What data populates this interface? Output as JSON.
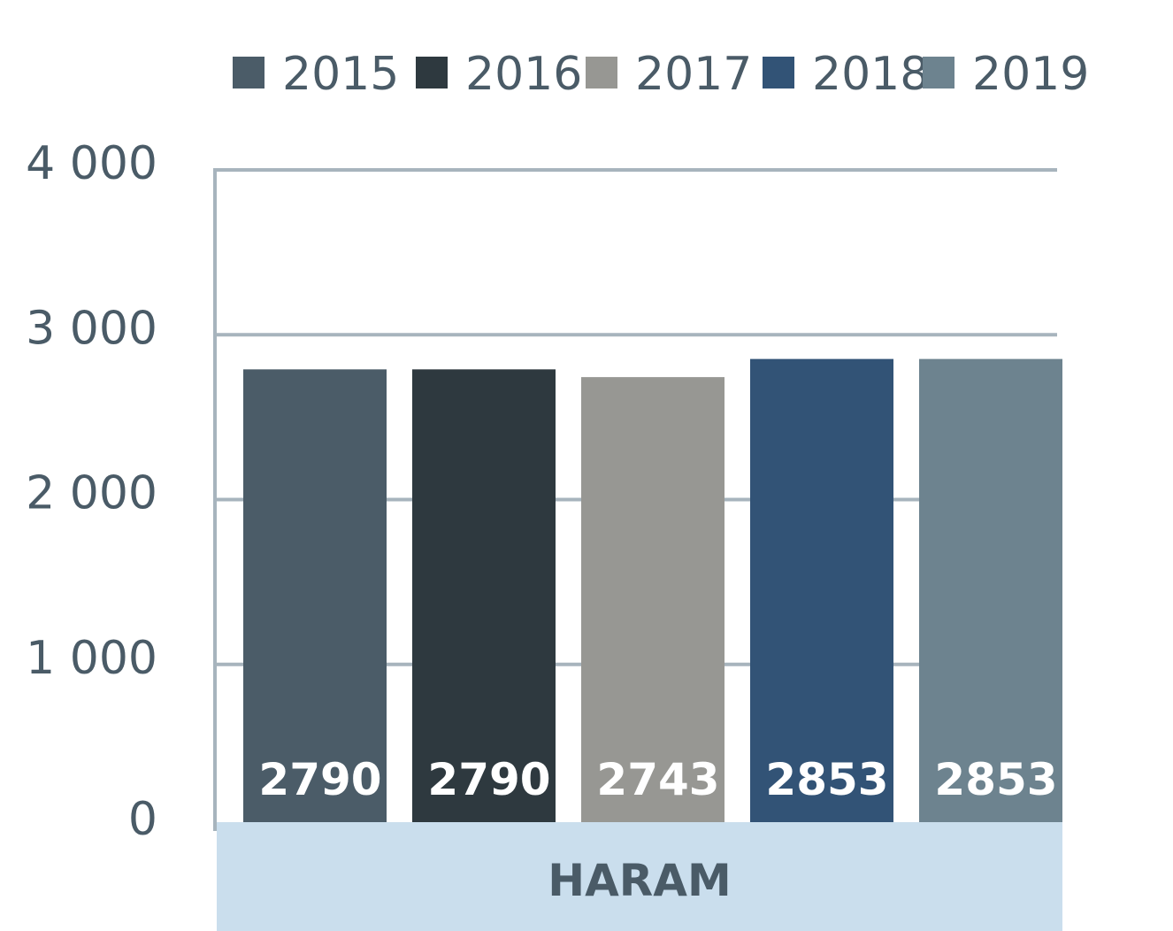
{
  "chart_data": {
    "type": "bar",
    "categories": [
      "HARAM"
    ],
    "series": [
      {
        "name": "2015",
        "values": [
          2790
        ],
        "color": "#4b5c68",
        "value_label": "2790"
      },
      {
        "name": "2016",
        "values": [
          2790
        ],
        "color": "#2e393f",
        "value_label": "2790"
      },
      {
        "name": "2017",
        "values": [
          2743
        ],
        "color": "#979793",
        "value_label": "2743"
      },
      {
        "name": "2018",
        "values": [
          2853
        ],
        "color": "#325376",
        "value_label": "2853"
      },
      {
        "name": "2019",
        "values": [
          2853
        ],
        "color": "#6d838f",
        "value_label": "2853"
      }
    ],
    "ylim": [
      0,
      4000
    ],
    "yticks": [
      {
        "value": 0,
        "label": "0"
      },
      {
        "value": 1000,
        "label": "1 000"
      },
      {
        "value": 2000,
        "label": "2 000"
      },
      {
        "value": 3000,
        "label": "3 000"
      },
      {
        "value": 4000,
        "label": "4 000"
      }
    ],
    "grid": true,
    "legend_position": "top",
    "title": "",
    "xlabel": "",
    "ylabel": "",
    "colors": {
      "grid": "#a7b4bd",
      "axis_text": "#4a5b67",
      "category_band": "#cadeed",
      "value_text": "#ffffff"
    }
  }
}
